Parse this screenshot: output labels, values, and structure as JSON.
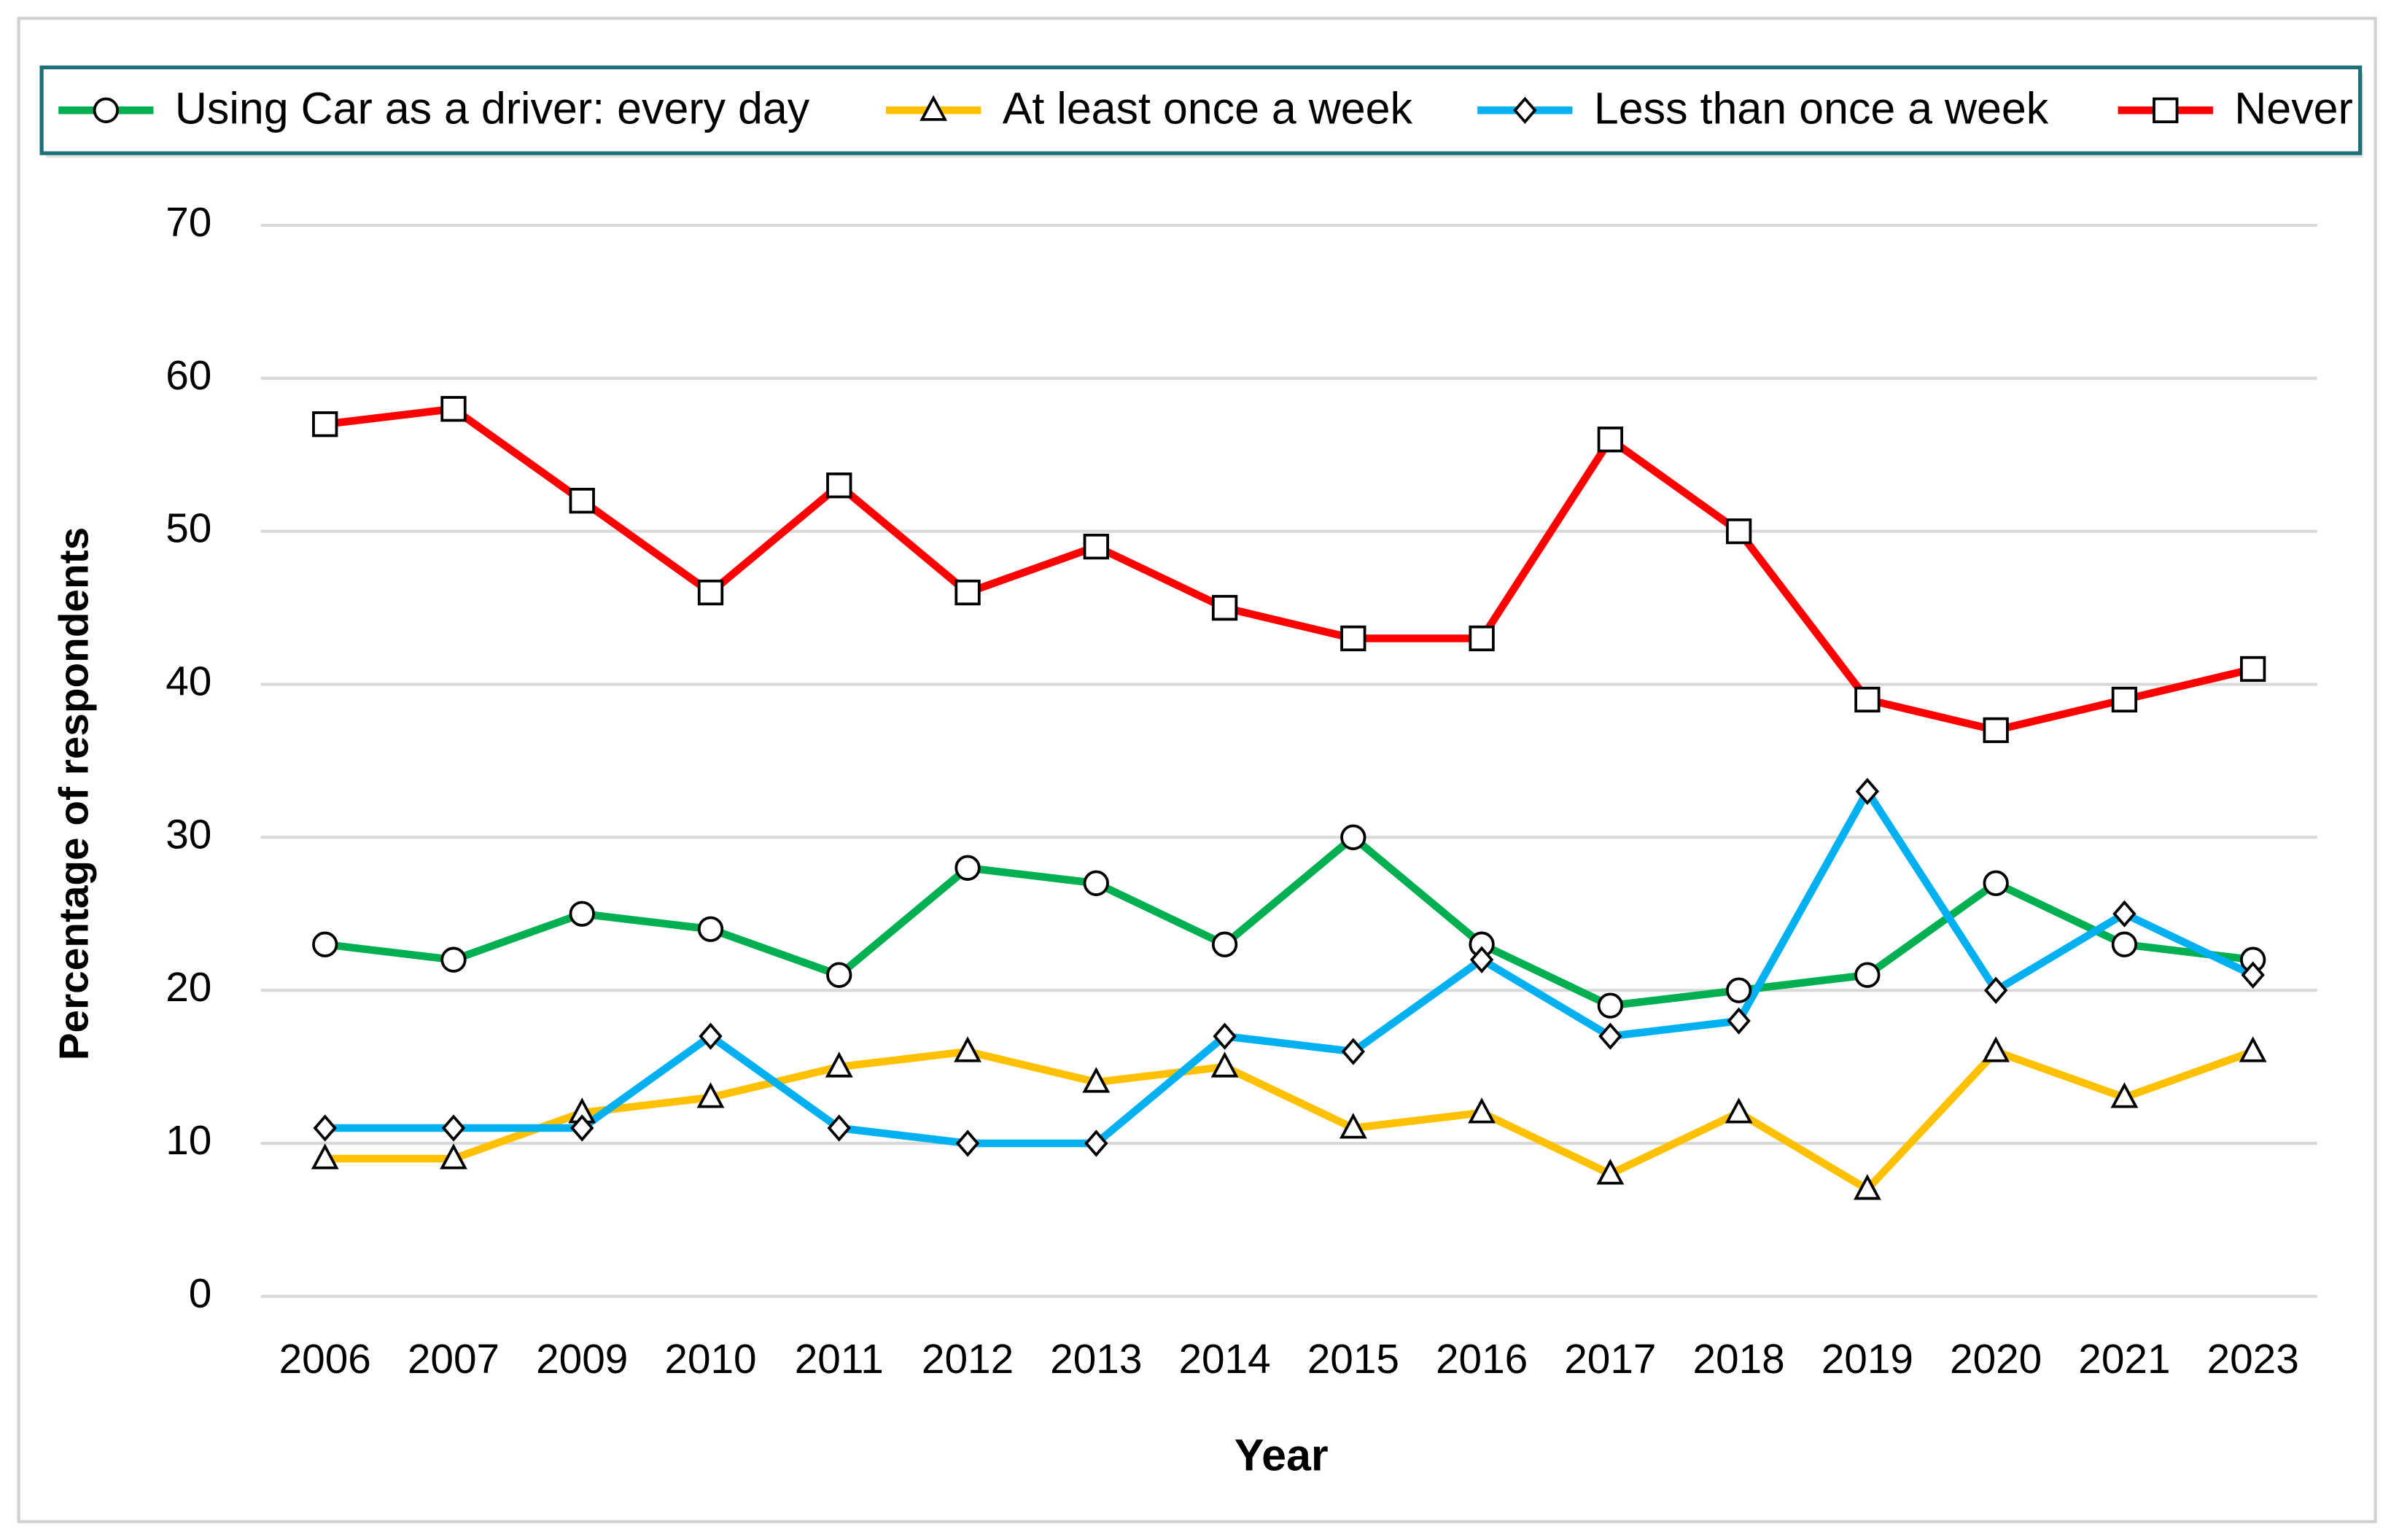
{
  "chart_data": {
    "type": "line",
    "x_label": "Year",
    "y_label": "Percentage of respondents",
    "categories": [
      "2006",
      "2007",
      "2009",
      "2010",
      "2011",
      "2012",
      "2013",
      "2014",
      "2015",
      "2016",
      "2017",
      "2018",
      "2019",
      "2020",
      "2021",
      "2023"
    ],
    "series": [
      {
        "name": "Using Car as a driver: every day",
        "color": "#00b050",
        "marker": "circle",
        "values": [
          23,
          22,
          25,
          24,
          21,
          28,
          27,
          23,
          30,
          23,
          19,
          20,
          21,
          27,
          23,
          22
        ]
      },
      {
        "name": "At least once a week",
        "color": "#ffc000",
        "marker": "triangle",
        "values": [
          9,
          9,
          12,
          13,
          15,
          16,
          14,
          15,
          11,
          12,
          8,
          12,
          7,
          16,
          13,
          16
        ]
      },
      {
        "name": "Less than once a week",
        "color": "#00b0f0",
        "marker": "diamond",
        "values": [
          11,
          11,
          11,
          17,
          11,
          10,
          10,
          17,
          16,
          22,
          17,
          18,
          33,
          20,
          25,
          21
        ]
      },
      {
        "name": "Never",
        "color": "#ff0000",
        "marker": "square",
        "values": [
          57,
          58,
          52,
          46,
          53,
          46,
          49,
          45,
          43,
          43,
          56,
          50,
          39,
          37,
          39,
          41
        ]
      }
    ],
    "ylim": [
      0,
      70
    ],
    "yticks": [
      0,
      10,
      20,
      30,
      40,
      50,
      60,
      70
    ],
    "grid": true,
    "legend": "top"
  }
}
